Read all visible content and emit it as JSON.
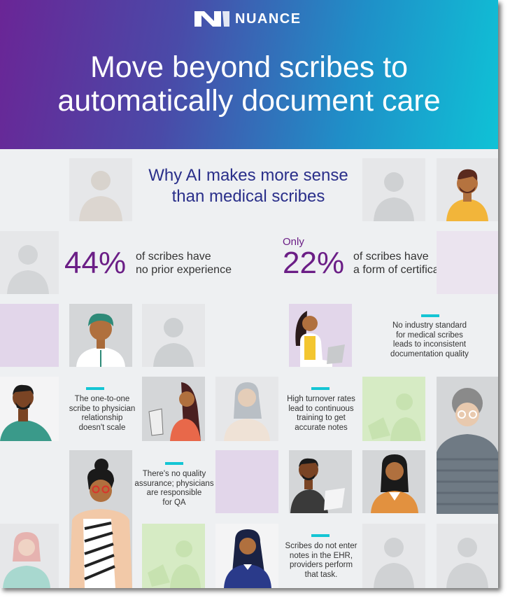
{
  "header": {
    "brand": "NUANCE",
    "title_line1": "Move beyond scribes to",
    "title_line2": "automatically document care"
  },
  "subtitle": {
    "line1": "Why AI makes more sense",
    "line2": "than medical scribes"
  },
  "stats": [
    {
      "value": "44%",
      "text_line1": "of scribes have",
      "text_line2": "no prior experience"
    },
    {
      "prefix": "Only",
      "value": "22%",
      "text_line1": "of scribes have",
      "text_line2": "a form of certification"
    }
  ],
  "notes": {
    "standard": [
      "No industry standard",
      "for medical scribes",
      "leads to inconsistent",
      "documentation quality"
    ],
    "scale": [
      "The one-to-one",
      "scribe to physician",
      "relationship",
      "doesn't scale"
    ],
    "turnover": [
      "High turnover rates",
      "lead to continuous",
      "training to get",
      "accurate notes"
    ],
    "qa": [
      "There's no quality",
      "assurance; physicians",
      "are responsible",
      "for QA"
    ],
    "ehr": [
      "Scribes do not enter",
      "notes in the EHR,",
      "providers perform",
      "that task."
    ]
  },
  "colors": {
    "accent_purple": "#6b1e86",
    "accent_navy": "#2a2f8a",
    "accent_cyan": "#14c5d4"
  }
}
